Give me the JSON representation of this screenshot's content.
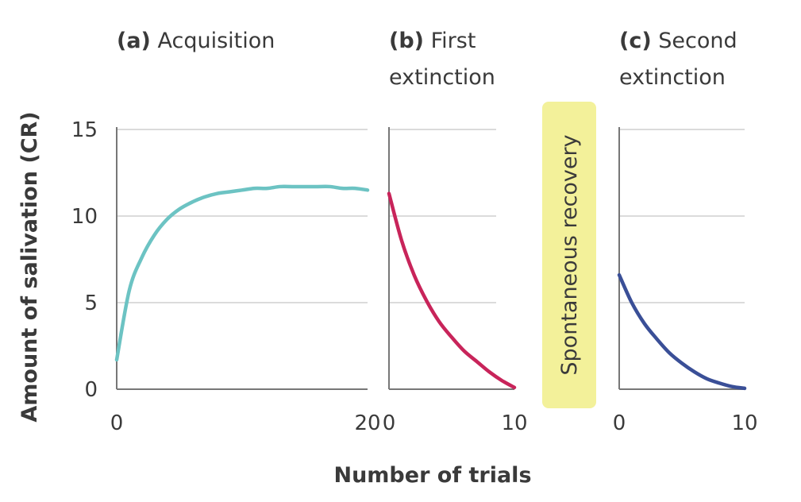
{
  "y_axis_label": "Amount of salivation (CR)",
  "x_axis_label": "Number of trials",
  "annotation": "Spontaneous recovery",
  "colors": {
    "acquisition": "#6cc3c3",
    "first_extinction": "#c8245a",
    "second_extinction": "#3a4f97",
    "annotation_bg": "#f3f19a",
    "axis": "#777777",
    "grid": "#cfcfcf",
    "text": "#3a3a3a"
  },
  "chart_data": [
    {
      "type": "line",
      "panel_letter": "(a)",
      "title": "Acquisition",
      "y_ticks": [
        "0",
        "5",
        "10",
        "15"
      ],
      "x_ticks": [
        "0",
        "20"
      ],
      "xlim": [
        0,
        20
      ],
      "ylim": [
        0,
        15
      ],
      "x": [
        0,
        1,
        2,
        3,
        4,
        5,
        6,
        7,
        8,
        9,
        10,
        11,
        12,
        13,
        14,
        15,
        16,
        17,
        18,
        19,
        20
      ],
      "y": [
        1.7,
        5.7,
        7.6,
        8.9,
        9.8,
        10.4,
        10.8,
        11.1,
        11.3,
        11.4,
        11.5,
        11.6,
        11.6,
        11.7,
        11.7,
        11.7,
        11.7,
        11.7,
        11.6,
        11.6,
        11.5
      ]
    },
    {
      "type": "line",
      "panel_letter": "(b)",
      "title": "First\nextinction",
      "x_ticks": [
        "0",
        "10"
      ],
      "xlim": [
        0,
        10
      ],
      "ylim": [
        0,
        15
      ],
      "x": [
        0,
        1,
        2,
        3,
        4,
        5,
        6,
        7,
        8,
        9,
        10
      ],
      "y": [
        11.3,
        8.6,
        6.6,
        5.1,
        3.9,
        3.0,
        2.2,
        1.6,
        1.0,
        0.5,
        0.1
      ]
    },
    {
      "type": "line",
      "panel_letter": "(c)",
      "title": "Second\nextinction",
      "x_ticks": [
        "0",
        "10"
      ],
      "xlim": [
        0,
        10
      ],
      "ylim": [
        0,
        15
      ],
      "x": [
        0,
        1,
        2,
        3,
        4,
        5,
        6,
        7,
        8,
        9,
        10
      ],
      "y": [
        6.6,
        5.0,
        3.8,
        2.9,
        2.1,
        1.5,
        1.0,
        0.6,
        0.35,
        0.15,
        0.05
      ]
    }
  ]
}
